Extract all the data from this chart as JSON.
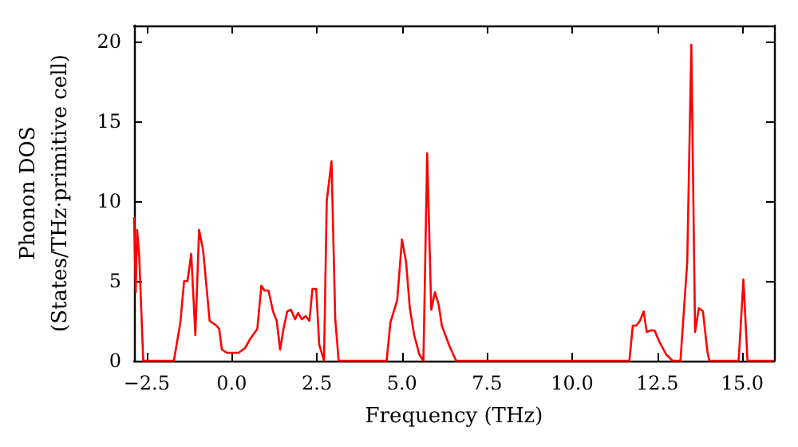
{
  "chart_data": {
    "type": "line",
    "xlabel": "Frequency (THz)",
    "ylabel": "Phonon DOS\n(States/THz·primitive cell)",
    "series": [
      {
        "color": "#ff0000",
        "x": [
          -2.87,
          -2.82,
          -2.78,
          -2.72,
          -2.6,
          -2.47,
          -1.7,
          -1.51,
          -1.4,
          -1.3,
          -1.19,
          -1.07,
          -0.96,
          -0.84,
          -0.65,
          -0.45,
          -0.37,
          -0.29,
          -0.14,
          0.2,
          0.39,
          0.55,
          0.75,
          0.87,
          0.96,
          1.08,
          1.21,
          1.32,
          1.42,
          1.52,
          1.63,
          1.74,
          1.86,
          1.95,
          2.06,
          2.17,
          2.28,
          2.37,
          2.48,
          2.57,
          2.71,
          2.79,
          2.93,
          3.04,
          3.14,
          4.55,
          4.66,
          4.86,
          5.0,
          5.12,
          5.23,
          5.36,
          5.51,
          5.63,
          5.74,
          5.86,
          5.97,
          6.08,
          6.17,
          6.4,
          6.59,
          11.68,
          11.78,
          11.88,
          11.99,
          12.1,
          12.19,
          12.3,
          12.42,
          12.56,
          12.76,
          12.95,
          13.18,
          13.38,
          13.5,
          13.61,
          13.72,
          13.84,
          13.97,
          14.03,
          14.89,
          15.03,
          15.15,
          15.93
        ],
        "values": [
          9.0,
          4.3,
          8.2,
          6.6,
          0,
          0,
          0,
          2.4,
          5.0,
          5.0,
          6.7,
          1.6,
          8.2,
          6.9,
          2.5,
          2.2,
          2.0,
          0.7,
          0.5,
          0.5,
          0.8,
          1.4,
          2.0,
          4.7,
          4.4,
          4.4,
          3.1,
          2.5,
          0.7,
          2.0,
          3.1,
          3.2,
          2.6,
          3.0,
          2.6,
          2.8,
          2.5,
          4.5,
          4.5,
          1.0,
          0,
          10.0,
          12.5,
          2.6,
          0,
          0,
          2.4,
          3.8,
          7.6,
          6.2,
          3.3,
          1.6,
          0.4,
          0,
          13.0,
          3.2,
          4.3,
          3.5,
          2.2,
          0.9,
          0,
          0,
          2.2,
          2.2,
          2.5,
          3.1,
          1.8,
          1.9,
          1.9,
          1.2,
          0.4,
          0,
          0,
          6.2,
          19.8,
          1.8,
          3.3,
          3.1,
          0.6,
          0,
          0,
          5.1,
          0,
          0
        ]
      }
    ],
    "xlim": [
      -2.87,
      15.93
    ],
    "ylim": [
      0,
      21
    ],
    "xticks": [
      {
        "value": -2.5,
        "label": "−2.5"
      },
      {
        "value": 0,
        "label": "0.0"
      },
      {
        "value": 2.5,
        "label": "2.5"
      },
      {
        "value": 5,
        "label": "5.0"
      },
      {
        "value": 7.5,
        "label": "7.5"
      },
      {
        "value": 10,
        "label": "10.0"
      },
      {
        "value": 12.5,
        "label": "12.5"
      },
      {
        "value": 15,
        "label": "15.0"
      }
    ],
    "yticks": [
      0,
      5,
      10,
      15,
      20
    ],
    "grid": false,
    "marker": "none",
    "line_style": "solid"
  }
}
